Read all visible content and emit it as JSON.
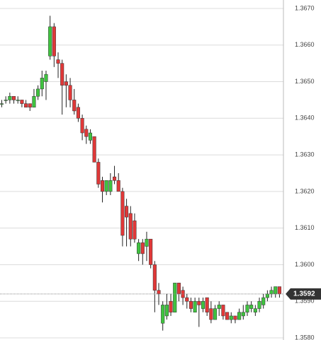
{
  "chart_data": {
    "type": "candlestick",
    "ylim": [
      1.3579,
      1.3672
    ],
    "yticks": [
      {
        "value": 1.358,
        "label": "1.3580"
      },
      {
        "value": 1.359,
        "label": "1.3590"
      },
      {
        "value": 1.36,
        "label": "1.3600"
      },
      {
        "value": 1.361,
        "label": "1.3610"
      },
      {
        "value": 1.362,
        "label": "1.3620"
      },
      {
        "value": 1.363,
        "label": "1.3630"
      },
      {
        "value": 1.364,
        "label": "1.3640"
      },
      {
        "value": 1.365,
        "label": "1.3650"
      },
      {
        "value": 1.366,
        "label": "1.3660"
      },
      {
        "value": 1.367,
        "label": "1.3670"
      }
    ],
    "grid": true,
    "up_color": "#3fc33f",
    "down_color": "#e03838",
    "current_price": {
      "value": 1.3592,
      "label": "1.3592"
    },
    "series": [
      {
        "open": [
          1.3644,
          1.3645,
          1.3645,
          1.3646,
          1.3645,
          1.3645,
          1.3644,
          1.3644,
          1.3643,
          1.3646,
          1.3648,
          1.365,
          1.3657,
          1.3665,
          1.3656,
          1.3655,
          1.365,
          1.3649,
          1.3645,
          1.3643,
          1.364,
          1.3637,
          1.3634,
          1.3635,
          1.3628,
          1.3623,
          1.362,
          1.362,
          1.3624,
          1.3623,
          1.362,
          1.3616,
          1.3614,
          1.3612,
          1.3603,
          1.3606,
          1.3605,
          1.3607,
          1.36,
          1.3593,
          1.3584,
          1.3586,
          1.359,
          1.3587,
          1.3595,
          1.3593,
          1.3591,
          1.359,
          1.3587,
          1.359,
          1.3588,
          1.3591,
          1.3588,
          1.3585,
          1.3588,
          1.3589,
          1.3587,
          1.3585,
          1.3586,
          1.3585,
          1.3586,
          1.3587,
          1.3588,
          1.3587,
          1.3588,
          1.3589,
          1.3591,
          1.3592,
          1.3592,
          1.3594
        ],
        "high": [
          1.3645,
          1.3646,
          1.3647,
          1.3646,
          1.3646,
          1.3645,
          1.3645,
          1.3644,
          1.3648,
          1.3649,
          1.3653,
          1.3653,
          1.3668,
          1.3666,
          1.3658,
          1.3656,
          1.3652,
          1.3651,
          1.3648,
          1.3644,
          1.3641,
          1.3638,
          1.3637,
          1.3635,
          1.3629,
          1.3624,
          1.3623,
          1.3625,
          1.3627,
          1.3625,
          1.3621,
          1.3618,
          1.3616,
          1.3614,
          1.3607,
          1.3607,
          1.3609,
          1.3607,
          1.3601,
          1.3595,
          1.359,
          1.3592,
          1.3592,
          1.3595,
          1.3595,
          1.3594,
          1.3592,
          1.3591,
          1.3591,
          1.3591,
          1.3591,
          1.3591,
          1.359,
          1.3589,
          1.359,
          1.3589,
          1.3587,
          1.3587,
          1.3586,
          1.3588,
          1.3589,
          1.359,
          1.359,
          1.3589,
          1.3591,
          1.3592,
          1.3593,
          1.3594,
          1.3594,
          1.3594
        ],
        "low": [
          1.3643,
          1.3644,
          1.3644,
          1.3644,
          1.3644,
          1.3643,
          1.3643,
          1.3642,
          1.3643,
          1.3645,
          1.3646,
          1.3645,
          1.3656,
          1.3654,
          1.3651,
          1.3641,
          1.3643,
          1.3643,
          1.3641,
          1.3639,
          1.3634,
          1.3633,
          1.3633,
          1.3628,
          1.3621,
          1.3617,
          1.3619,
          1.3619,
          1.3622,
          1.362,
          1.3605,
          1.3605,
          1.3605,
          1.3606,
          1.3601,
          1.36,
          1.3601,
          1.3599,
          1.3587,
          1.3589,
          1.3582,
          1.3585,
          1.3586,
          1.3587,
          1.359,
          1.3589,
          1.3588,
          1.3587,
          1.3587,
          1.3583,
          1.3587,
          1.3586,
          1.3584,
          1.3585,
          1.3586,
          1.3585,
          1.3585,
          1.3584,
          1.3584,
          1.3585,
          1.3585,
          1.3586,
          1.3587,
          1.3586,
          1.3587,
          1.3588,
          1.359,
          1.3591,
          1.3591,
          1.3591
        ],
        "close": [
          1.3644,
          1.3645,
          1.3646,
          1.3645,
          1.3645,
          1.3644,
          1.3643,
          1.3643,
          1.3646,
          1.3648,
          1.3651,
          1.3652,
          1.3665,
          1.3657,
          1.3655,
          1.3649,
          1.3649,
          1.3645,
          1.3642,
          1.364,
          1.3636,
          1.3635,
          1.3636,
          1.3628,
          1.3622,
          1.362,
          1.3623,
          1.3623,
          1.3623,
          1.362,
          1.3608,
          1.3613,
          1.3607,
          1.3607,
          1.3606,
          1.3603,
          1.3607,
          1.36,
          1.3593,
          1.3592,
          1.3589,
          1.3589,
          1.3587,
          1.3595,
          1.3592,
          1.3591,
          1.359,
          1.3588,
          1.359,
          1.3589,
          1.359,
          1.3587,
          1.3585,
          1.3588,
          1.3589,
          1.3586,
          1.3585,
          1.3586,
          1.3585,
          1.3587,
          1.3587,
          1.3589,
          1.3589,
          1.3588,
          1.359,
          1.3591,
          1.3592,
          1.3593,
          1.3594,
          1.3592
        ]
      }
    ]
  }
}
